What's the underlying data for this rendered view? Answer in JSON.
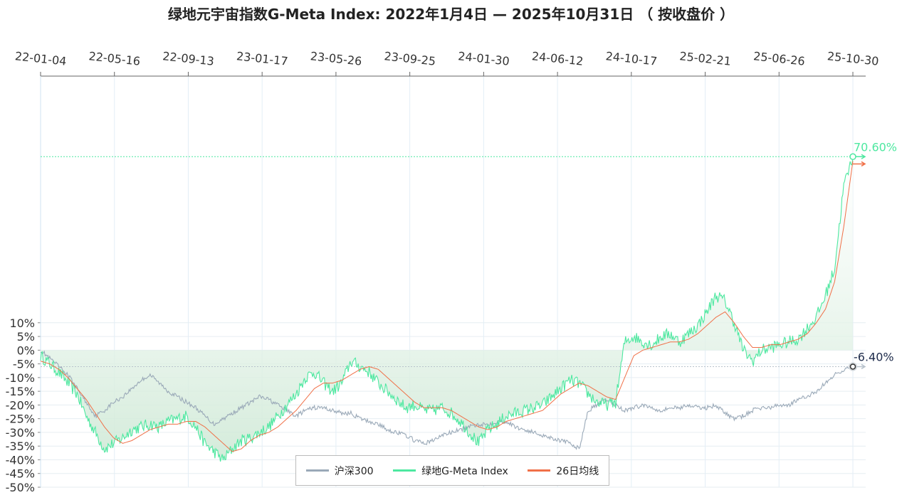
{
  "title": "绿地元宇宙指数G-Meta Index:  2022年1月4日  —  2025年10月31日 （ 按收盘价 ）",
  "chart_data": {
    "type": "line",
    "x_tick_labels": [
      "22-01-04",
      "22-05-16",
      "22-09-13",
      "23-01-17",
      "23-05-26",
      "23-09-25",
      "24-01-30",
      "24-06-12",
      "24-10-17",
      "25-02-21",
      "25-06-26",
      "25-10-30"
    ],
    "y_tick_labels": [
      "10%",
      "5%",
      "0%",
      "-5%",
      "-10%",
      "-15%",
      "-20%",
      "-25%",
      "-30%",
      "-35%",
      "-40%",
      "-45%",
      "-50%"
    ],
    "ylim": [
      -50,
      100
    ],
    "grid": true,
    "legend_position": "bottom-center",
    "colors": {
      "hs300": "#9aa9b8",
      "gmeta": "#4de8a0",
      "ma26": "#f07048",
      "fill": "#cfe9d6"
    },
    "series": [
      {
        "name": "沪深300",
        "key": "hs300",
        "values": [
          0,
          -3,
          -6,
          -9,
          -14,
          -19,
          -24,
          -22,
          -19,
          -17,
          -14,
          -11,
          -9,
          -12,
          -15,
          -17,
          -19,
          -21,
          -24,
          -27,
          -25,
          -23,
          -21,
          -19,
          -17,
          -18,
          -20,
          -22,
          -24,
          -22,
          -21,
          -21,
          -22,
          -23,
          -23,
          -25,
          -26,
          -27,
          -29,
          -30,
          -31,
          -33,
          -34,
          -33,
          -31,
          -30,
          -29,
          -28,
          -27,
          -27,
          -26,
          -26,
          -28,
          -29,
          -30,
          -31,
          -32,
          -33,
          -34,
          -36,
          -22,
          -20,
          -18,
          -20,
          -22,
          -21,
          -20,
          -21,
          -22,
          -21,
          -21,
          -20,
          -21,
          -21,
          -20,
          -23,
          -25,
          -24,
          -22,
          -21,
          -21,
          -20,
          -20,
          -18,
          -17,
          -15,
          -12,
          -9,
          -7,
          -6
        ]
      },
      {
        "name": "绿地G-Meta Index",
        "key": "gmeta",
        "values": [
          -2,
          -5,
          -8,
          -12,
          -16,
          -24,
          -30,
          -36,
          -34,
          -32,
          -29,
          -28,
          -27,
          -28,
          -26,
          -25,
          -24,
          -28,
          -34,
          -37,
          -40,
          -36,
          -33,
          -32,
          -30,
          -28,
          -24,
          -20,
          -16,
          -10,
          -8,
          -12,
          -15,
          -12,
          -4,
          -6,
          -8,
          -12,
          -15,
          -18,
          -21,
          -20,
          -22,
          -22,
          -21,
          -23,
          -26,
          -30,
          -34,
          -29,
          -27,
          -24,
          -23,
          -22,
          -21,
          -20,
          -17,
          -14,
          -11,
          -12,
          -16,
          -19,
          -20,
          -19,
          3,
          5,
          3,
          2,
          5,
          6,
          3,
          6,
          9,
          14,
          20,
          18,
          10,
          0,
          -4,
          0,
          1,
          2,
          3,
          4,
          8,
          12,
          20,
          30,
          60,
          70.6
        ]
      },
      {
        "name": "26日均线",
        "key": "ma26",
        "values": [
          -4,
          -5,
          -7,
          -10,
          -14,
          -18,
          -23,
          -28,
          -32,
          -34,
          -33,
          -31,
          -29,
          -28,
          -27,
          -27,
          -26,
          -26,
          -28,
          -31,
          -34,
          -37,
          -36,
          -33,
          -31,
          -30,
          -28,
          -25,
          -22,
          -18,
          -14,
          -12,
          -12,
          -11,
          -9,
          -7,
          -6,
          -7,
          -10,
          -13,
          -16,
          -19,
          -21,
          -21,
          -21,
          -22,
          -24,
          -26,
          -28,
          -29,
          -28,
          -26,
          -25,
          -24,
          -23,
          -22,
          -19,
          -16,
          -14,
          -12,
          -13,
          -15,
          -17,
          -18,
          -10,
          -2,
          0,
          1,
          2,
          3,
          3,
          4,
          6,
          9,
          12,
          14,
          10,
          5,
          1,
          1,
          2,
          2,
          3,
          4,
          6,
          10,
          15,
          25,
          45,
          69
        ]
      }
    ],
    "end_labels": {
      "gmeta": "70.60%",
      "hs300": "-6.40%"
    }
  },
  "legend": [
    {
      "label": "沪深300",
      "color": "#9aa9b8"
    },
    {
      "label": "绿地G-Meta Index",
      "color": "#4de8a0"
    },
    {
      "label": "26日均线",
      "color": "#f07048"
    }
  ]
}
